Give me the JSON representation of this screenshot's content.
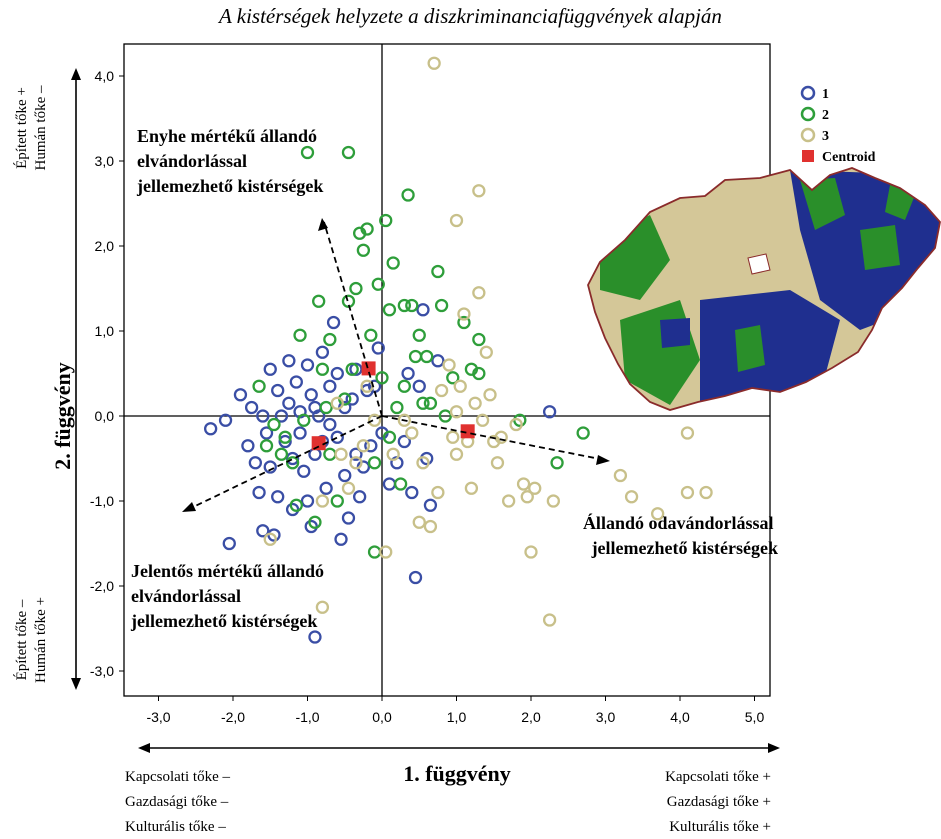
{
  "chart_data": {
    "type": "scatter",
    "title": "A kistérségek helyzete a diszkriminanciafüggvények alapján",
    "xlabel": "1. függvény",
    "ylabel": "2. függvény",
    "xlim": [
      -3.5,
      5.5
    ],
    "ylim": [
      -3.5,
      4.2
    ],
    "x_ticks": [
      "-3,0",
      "-2,0",
      "-1,0",
      "0,0",
      "1,0",
      "2,0",
      "3,0",
      "4,0",
      "5,0"
    ],
    "y_ticks": [
      "4,0",
      "3,0",
      "2,0",
      "1,0",
      "0,0",
      "-1,0",
      "-2,0",
      "-3,0"
    ],
    "x_tick_values": [
      -3,
      -2,
      -1,
      0,
      1,
      2,
      3,
      4,
      5
    ],
    "y_tick_values": [
      4,
      3,
      2,
      1,
      0,
      -1,
      -2,
      -3
    ],
    "x_left_labels": [
      "Kapcsolati tőke –",
      "Gazdasági tőke –",
      "Kulturális tőke –"
    ],
    "x_right_labels": [
      "Kapcsolati tőke +",
      "Gazdasági tőke +",
      "Kulturális tőke +"
    ],
    "y_top_labels": [
      "Épített tőke +",
      "Humán tőke –"
    ],
    "y_bottom_labels": [
      "Épített tőke –",
      "Humán tőke +"
    ],
    "annotations": {
      "upper": [
        "Enyhe mértékű állandó",
        "elvándorlással",
        "jellemezhető kistérségek"
      ],
      "lower": [
        "Jelentős mértékű állandó",
        "elvándorlással",
        "jellemezhető kistérségek"
      ],
      "right": [
        "Állandó odavándorlással",
        "jellemezhető kistérségek"
      ]
    },
    "legend": {
      "position": "top-right",
      "items": [
        "1",
        "2",
        "3",
        "Centroid"
      ]
    },
    "colors": {
      "1": "#3a4ea5",
      "2": "#2e9e3a",
      "3": "#c8c08a",
      "centroid": "#e0312f"
    },
    "grid": false,
    "series": [
      {
        "name": "1",
        "points": [
          [
            -2.3,
            -0.15
          ],
          [
            -2.1,
            -0.05
          ],
          [
            -2.05,
            -1.5
          ],
          [
            -1.9,
            0.25
          ],
          [
            -1.8,
            -0.35
          ],
          [
            -1.75,
            0.1
          ],
          [
            -1.7,
            -0.55
          ],
          [
            -1.65,
            -0.9
          ],
          [
            -1.6,
            0.0
          ],
          [
            -1.6,
            -1.35
          ],
          [
            -1.55,
            -0.2
          ],
          [
            -1.5,
            0.55
          ],
          [
            -1.5,
            -0.6
          ],
          [
            -1.45,
            -1.4
          ],
          [
            -1.4,
            0.3
          ],
          [
            -1.4,
            -0.95
          ],
          [
            -1.35,
            0.0
          ],
          [
            -1.3,
            -0.3
          ],
          [
            -1.25,
            0.65
          ],
          [
            -1.25,
            0.15
          ],
          [
            -1.2,
            -0.5
          ],
          [
            -1.2,
            -1.1
          ],
          [
            -1.15,
            0.4
          ],
          [
            -1.1,
            0.05
          ],
          [
            -1.1,
            -0.2
          ],
          [
            -1.05,
            -0.65
          ],
          [
            -1.0,
            0.6
          ],
          [
            -1.0,
            -1.0
          ],
          [
            -0.95,
            0.25
          ],
          [
            -0.95,
            -1.3
          ],
          [
            -0.9,
            0.1
          ],
          [
            -0.9,
            -0.45
          ],
          [
            -0.9,
            -2.6
          ],
          [
            -0.85,
            0.0
          ],
          [
            -0.8,
            0.75
          ],
          [
            -0.8,
            -0.3
          ],
          [
            -0.75,
            -0.85
          ],
          [
            -0.7,
            0.35
          ],
          [
            -0.7,
            -0.1
          ],
          [
            -0.65,
            1.1
          ],
          [
            -0.6,
            0.5
          ],
          [
            -0.6,
            -0.25
          ],
          [
            -0.55,
            -1.45
          ],
          [
            -0.5,
            0.1
          ],
          [
            -0.5,
            -0.7
          ],
          [
            -0.45,
            -1.2
          ],
          [
            -0.4,
            0.2
          ],
          [
            -0.35,
            0.55
          ],
          [
            -0.35,
            -0.45
          ],
          [
            -0.3,
            -0.95
          ],
          [
            -0.25,
            -0.6
          ],
          [
            -0.2,
            0.3
          ],
          [
            -0.15,
            -0.35
          ],
          [
            -0.1,
            0.35
          ],
          [
            -0.05,
            0.8
          ],
          [
            0.0,
            -0.2
          ],
          [
            0.1,
            -0.8
          ],
          [
            0.2,
            -0.55
          ],
          [
            0.3,
            -0.3
          ],
          [
            0.35,
            0.5
          ],
          [
            0.4,
            -0.9
          ],
          [
            0.45,
            -1.9
          ],
          [
            0.5,
            0.35
          ],
          [
            0.55,
            1.25
          ],
          [
            0.6,
            -0.5
          ],
          [
            0.65,
            -1.05
          ],
          [
            0.75,
            0.65
          ],
          [
            2.25,
            0.05
          ]
        ]
      },
      {
        "name": "2",
        "points": [
          [
            -1.65,
            0.35
          ],
          [
            -1.55,
            -0.35
          ],
          [
            -1.45,
            -0.1
          ],
          [
            -1.35,
            -0.45
          ],
          [
            -1.3,
            -0.25
          ],
          [
            -1.2,
            -0.55
          ],
          [
            -1.15,
            -1.05
          ],
          [
            -1.1,
            0.95
          ],
          [
            -1.05,
            -0.05
          ],
          [
            -1.0,
            3.1
          ],
          [
            -0.9,
            -1.25
          ],
          [
            -0.85,
            1.35
          ],
          [
            -0.8,
            0.55
          ],
          [
            -0.75,
            0.1
          ],
          [
            -0.7,
            -0.45
          ],
          [
            -0.7,
            0.9
          ],
          [
            -0.6,
            -1.0
          ],
          [
            -0.5,
            0.2
          ],
          [
            -0.45,
            3.1
          ],
          [
            -0.45,
            1.35
          ],
          [
            -0.4,
            0.55
          ],
          [
            -0.35,
            1.5
          ],
          [
            -0.3,
            2.15
          ],
          [
            -0.25,
            1.95
          ],
          [
            -0.2,
            2.2
          ],
          [
            -0.15,
            0.95
          ],
          [
            -0.1,
            -0.55
          ],
          [
            -0.1,
            -1.6
          ],
          [
            -0.05,
            1.55
          ],
          [
            0.0,
            0.45
          ],
          [
            0.05,
            2.3
          ],
          [
            0.1,
            1.25
          ],
          [
            0.1,
            -0.25
          ],
          [
            0.15,
            1.8
          ],
          [
            0.2,
            0.1
          ],
          [
            0.25,
            -0.8
          ],
          [
            0.3,
            0.35
          ],
          [
            0.3,
            1.3
          ],
          [
            0.35,
            2.6
          ],
          [
            0.4,
            1.3
          ],
          [
            0.45,
            0.7
          ],
          [
            0.5,
            0.95
          ],
          [
            0.55,
            0.15
          ],
          [
            0.6,
            0.7
          ],
          [
            0.65,
            0.15
          ],
          [
            0.75,
            1.7
          ],
          [
            0.8,
            1.3
          ],
          [
            0.85,
            0.0
          ],
          [
            0.95,
            0.45
          ],
          [
            1.1,
            1.1
          ],
          [
            1.2,
            0.55
          ],
          [
            1.3,
            0.9
          ],
          [
            1.3,
            0.5
          ],
          [
            1.85,
            -0.05
          ],
          [
            2.35,
            -0.55
          ],
          [
            2.7,
            -0.2
          ]
        ]
      },
      {
        "name": "3",
        "points": [
          [
            -1.5,
            -1.45
          ],
          [
            -0.8,
            -2.25
          ],
          [
            -0.8,
            -1.0
          ],
          [
            -0.6,
            0.15
          ],
          [
            -0.55,
            -0.45
          ],
          [
            -0.45,
            -0.85
          ],
          [
            -0.35,
            -0.55
          ],
          [
            -0.25,
            -0.35
          ],
          [
            -0.2,
            0.35
          ],
          [
            -0.1,
            -0.05
          ],
          [
            0.05,
            -1.6
          ],
          [
            0.15,
            -0.45
          ],
          [
            0.3,
            -0.05
          ],
          [
            0.4,
            -0.2
          ],
          [
            0.5,
            -1.25
          ],
          [
            0.55,
            -0.55
          ],
          [
            0.65,
            -1.3
          ],
          [
            0.7,
            4.15
          ],
          [
            0.75,
            -0.9
          ],
          [
            0.8,
            0.3
          ],
          [
            0.9,
            0.6
          ],
          [
            0.95,
            -0.25
          ],
          [
            1.0,
            2.3
          ],
          [
            1.0,
            0.05
          ],
          [
            1.0,
            -0.45
          ],
          [
            1.05,
            0.35
          ],
          [
            1.1,
            1.2
          ],
          [
            1.15,
            -0.3
          ],
          [
            1.2,
            -0.85
          ],
          [
            1.25,
            0.15
          ],
          [
            1.3,
            1.45
          ],
          [
            1.3,
            2.65
          ],
          [
            1.35,
            -0.05
          ],
          [
            1.4,
            0.75
          ],
          [
            1.45,
            0.25
          ],
          [
            1.5,
            -0.3
          ],
          [
            1.55,
            -0.55
          ],
          [
            1.6,
            -0.25
          ],
          [
            1.7,
            -1.0
          ],
          [
            1.8,
            -0.1
          ],
          [
            1.9,
            -0.8
          ],
          [
            1.95,
            -0.95
          ],
          [
            2.0,
            -1.6
          ],
          [
            2.05,
            -0.85
          ],
          [
            2.25,
            -2.4
          ],
          [
            2.3,
            -1.0
          ],
          [
            3.2,
            -0.7
          ],
          [
            3.35,
            -0.95
          ],
          [
            3.7,
            -1.15
          ],
          [
            4.1,
            -0.2
          ],
          [
            4.1,
            -0.9
          ],
          [
            4.35,
            -0.9
          ]
        ]
      },
      {
        "name": "Centroid",
        "points": [
          [
            -0.85,
            -0.32
          ],
          [
            -0.18,
            0.56
          ],
          [
            1.15,
            -0.18
          ]
        ]
      }
    ]
  }
}
